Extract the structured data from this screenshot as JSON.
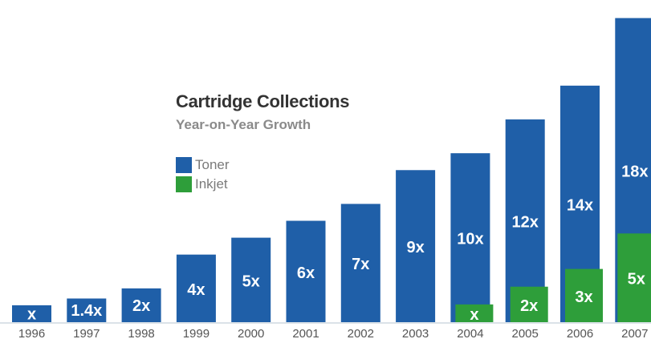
{
  "chart_data": {
    "type": "bar",
    "title": "Cartridge Collections",
    "subtitle": "Year-on-Year Growth",
    "xlabel": "",
    "ylabel": "",
    "ylim": [
      0,
      18.5
    ],
    "grid": false,
    "legend_position": "left-center",
    "categories": [
      "1996",
      "1997",
      "1998",
      "1999",
      "2000",
      "2001",
      "2002",
      "2003",
      "2004",
      "2005",
      "2006",
      "2007"
    ],
    "series": [
      {
        "name": "Toner",
        "color": "#1f5fa8",
        "values": [
          1,
          1.4,
          2,
          4,
          5,
          6,
          7,
          9,
          10,
          12,
          14,
          18
        ],
        "labels": [
          "x",
          "1.4x",
          "2x",
          "4x",
          "5x",
          "6x",
          "7x",
          "9x",
          "10x",
          "12x",
          "14x",
          "18x"
        ]
      },
      {
        "name": "Inkjet",
        "color": "#2e9e3a",
        "values": [
          null,
          null,
          null,
          null,
          null,
          null,
          null,
          null,
          1,
          2,
          3,
          5
        ],
        "labels": [
          "",
          "",
          "",
          "",
          "",
          "",
          "",
          "",
          "x",
          "2x",
          "3x",
          "5x"
        ]
      }
    ]
  }
}
